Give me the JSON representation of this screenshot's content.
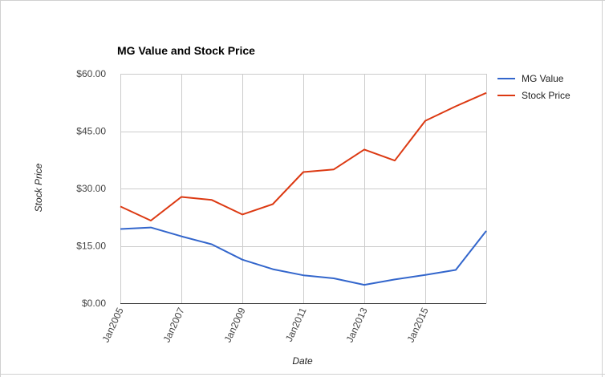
{
  "chart_data": {
    "type": "line",
    "title": "MG Value and Stock Price",
    "xlabel": "Date",
    "ylabel": "Stock Price",
    "x": [
      2005,
      2006,
      2007,
      2008,
      2009,
      2010,
      2011,
      2012,
      2013,
      2014,
      2015,
      2016,
      2017
    ],
    "x_ticks": [
      {
        "value": 2005,
        "label": "Jan2005"
      },
      {
        "value": 2007,
        "label": "Jan2007"
      },
      {
        "value": 2009,
        "label": "Jan2009"
      },
      {
        "value": 2011,
        "label": "Jan2011"
      },
      {
        "value": 2013,
        "label": "Jan2013"
      },
      {
        "value": 2015,
        "label": "Jan2015"
      }
    ],
    "xlim": [
      2005,
      2017
    ],
    "y_ticks": [
      {
        "value": 0,
        "label": "$0.00"
      },
      {
        "value": 15,
        "label": "$15.00"
      },
      {
        "value": 30,
        "label": "$30.00"
      },
      {
        "value": 45,
        "label": "$45.00"
      },
      {
        "value": 60,
        "label": "$60.00"
      }
    ],
    "ylim": [
      0,
      60
    ],
    "grid": true,
    "legend_position": "right",
    "series": [
      {
        "name": "MG Value",
        "color": "#3366cc",
        "values": [
          19.4,
          19.8,
          17.5,
          15.4,
          11.4,
          8.9,
          7.3,
          6.5,
          4.8,
          6.2,
          7.4,
          8.7,
          18.9
        ]
      },
      {
        "name": "Stock Price",
        "color": "#dc3912",
        "values": [
          25.3,
          21.6,
          27.8,
          27.0,
          23.2,
          25.9,
          34.3,
          35.0,
          40.2,
          37.3,
          47.7,
          51.5,
          55.0
        ]
      }
    ]
  },
  "colors": {
    "grid": "#cccccc",
    "axis": "#333333",
    "frame": "#d0d0d0",
    "background": "#ffffff"
  }
}
